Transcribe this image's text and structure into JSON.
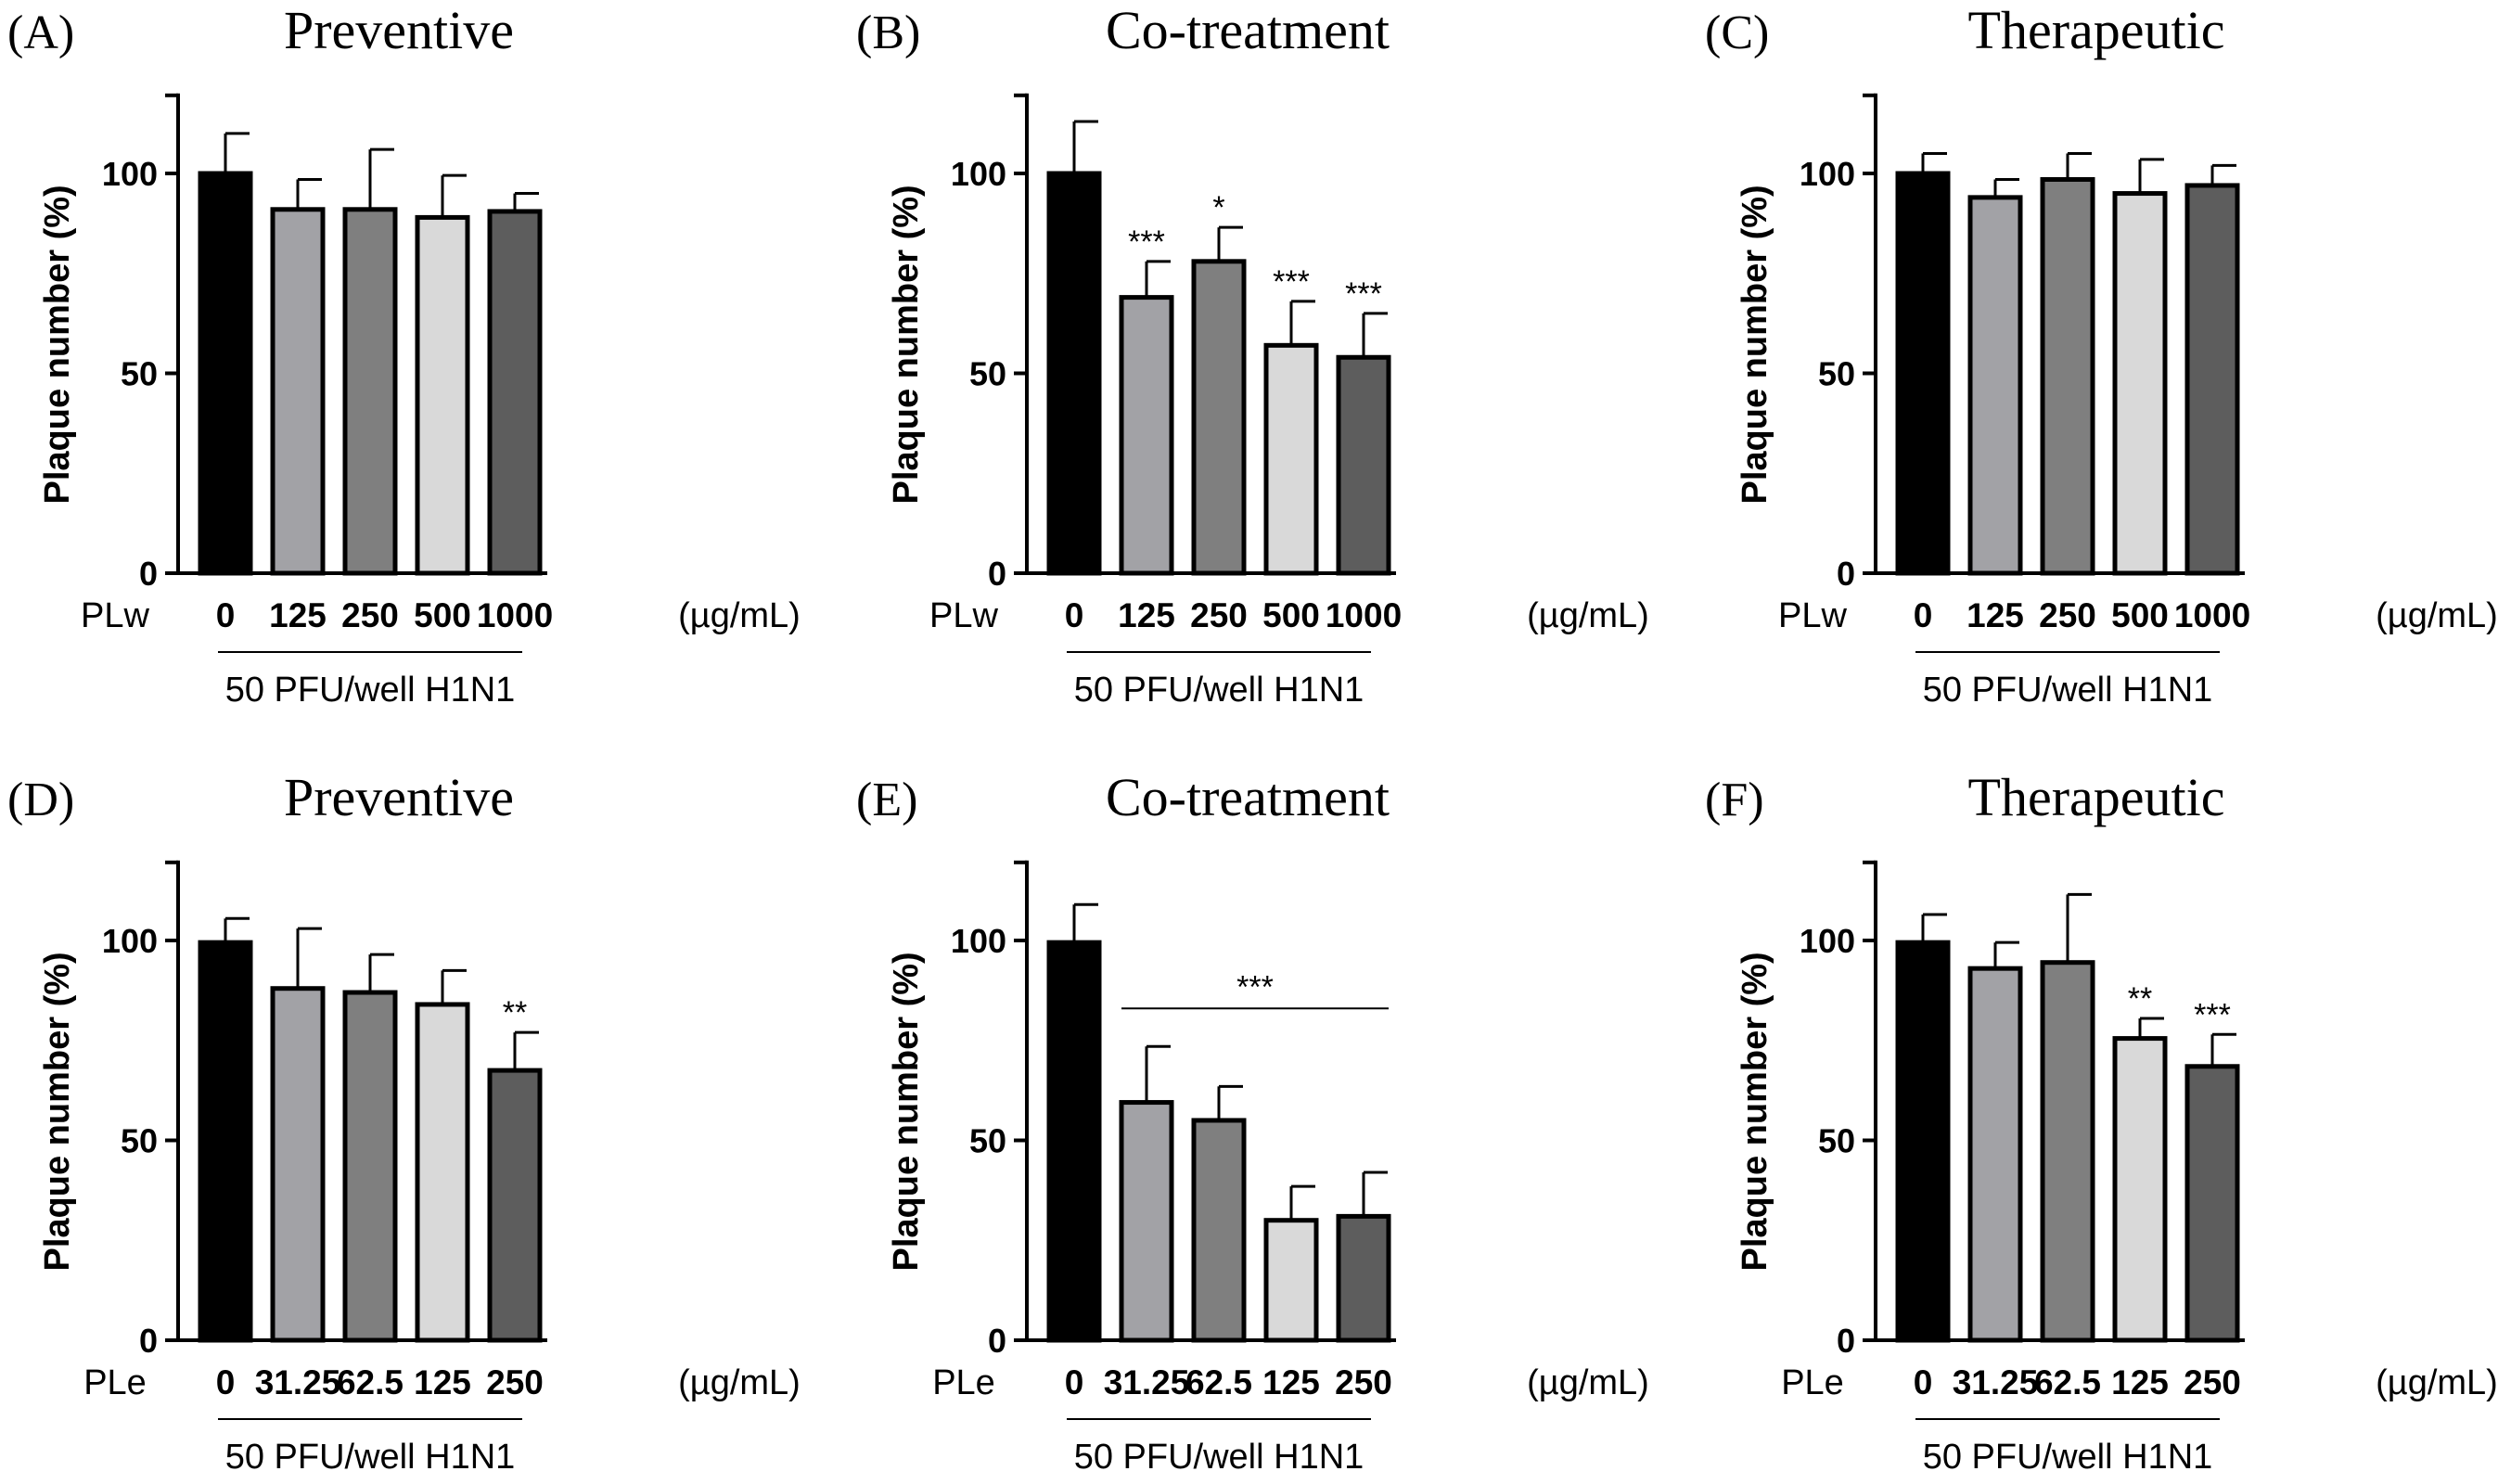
{
  "shared": {
    "ytick_labels": [
      "0",
      "50",
      "100"
    ],
    "ylim": [
      0,
      120
    ],
    "ylabel": "Plaque number (%)",
    "unit": "(µg/mL)",
    "group_label": "50 PFU/well H1N1"
  },
  "chart_data": [
    {
      "type": "bar",
      "panel": "(A)",
      "title": "Preventive",
      "row_label": "PLw",
      "categories": [
        "0",
        "125",
        "250",
        "500",
        "1000"
      ],
      "values": [
        100,
        91,
        91,
        89,
        90.5
      ],
      "errors": [
        10,
        7.5,
        15,
        10.5,
        4.5
      ],
      "sig": [
        "",
        "",
        "",
        "",
        ""
      ],
      "colors": [
        "#000000",
        "#a2a2a6",
        "#7f7f7f",
        "#d9d9d9",
        "#5d5d5d"
      ],
      "ylabel": "Plaque number (%)",
      "xlabel": "50 PFU/well H1N1",
      "ylim": [
        0,
        120
      ]
    },
    {
      "type": "bar",
      "panel": "(B)",
      "title": "Co-treatment",
      "row_label": "PLw",
      "categories": [
        "0",
        "125",
        "250",
        "500",
        "1000"
      ],
      "values": [
        100,
        69,
        78,
        57,
        54
      ],
      "errors": [
        13,
        9,
        8.5,
        11,
        11
      ],
      "sig": [
        "",
        "***",
        "*",
        "***",
        "***"
      ],
      "colors": [
        "#000000",
        "#a2a2a6",
        "#7f7f7f",
        "#d9d9d9",
        "#5d5d5d"
      ],
      "ylabel": "Plaque number (%)",
      "xlabel": "50 PFU/well H1N1",
      "ylim": [
        0,
        120
      ]
    },
    {
      "type": "bar",
      "panel": "(C)",
      "title": "Therapeutic",
      "row_label": "PLw",
      "categories": [
        "0",
        "125",
        "250",
        "500",
        "1000"
      ],
      "values": [
        100,
        94,
        98.5,
        95,
        97
      ],
      "errors": [
        5,
        4.5,
        6.5,
        8.5,
        5
      ],
      "sig": [
        "",
        "",
        "",
        "",
        ""
      ],
      "colors": [
        "#000000",
        "#a2a2a6",
        "#7f7f7f",
        "#d9d9d9",
        "#5d5d5d"
      ],
      "ylabel": "Plaque number (%)",
      "xlabel": "50 PFU/well H1N1",
      "ylim": [
        0,
        120
      ]
    },
    {
      "type": "bar",
      "panel": "(D)",
      "title": "Preventive",
      "row_label": "PLe",
      "categories": [
        "0",
        "31.25",
        "62.5",
        "125",
        "250"
      ],
      "values": [
        99.5,
        88,
        87,
        84,
        67.5
      ],
      "errors": [
        6,
        15,
        9.5,
        8.5,
        9.5
      ],
      "sig": [
        "",
        "",
        "",
        "",
        "**"
      ],
      "colors": [
        "#000000",
        "#a2a2a6",
        "#7f7f7f",
        "#d9d9d9",
        "#5d5d5d"
      ],
      "ylabel": "Plaque number (%)",
      "xlabel": "50 PFU/well H1N1",
      "ylim": [
        0,
        120
      ]
    },
    {
      "type": "bar",
      "panel": "(E)",
      "title": "Co-treatment",
      "row_label": "PLe",
      "categories": [
        "0",
        "31.25",
        "62.5",
        "125",
        "250"
      ],
      "values": [
        99.5,
        59.5,
        55,
        30,
        31
      ],
      "errors": [
        9.5,
        14,
        8.5,
        8.5,
        11
      ],
      "sig": [
        "",
        "",
        "",
        "",
        ""
      ],
      "group_sig": "***",
      "colors": [
        "#000000",
        "#a2a2a6",
        "#7f7f7f",
        "#d9d9d9",
        "#5d5d5d"
      ],
      "ylabel": "Plaque number (%)",
      "xlabel": "50 PFU/well H1N1",
      "ylim": [
        0,
        120
      ]
    },
    {
      "type": "bar",
      "panel": "(F)",
      "title": "Therapeutic",
      "row_label": "PLe",
      "categories": [
        "0",
        "31.25",
        "62.5",
        "125",
        "250"
      ],
      "values": [
        99.5,
        93,
        94.5,
        75.5,
        68.5
      ],
      "errors": [
        7,
        6.5,
        17,
        5,
        8
      ],
      "sig": [
        "",
        "",
        "",
        "**",
        "***"
      ],
      "colors": [
        "#000000",
        "#a2a2a6",
        "#7f7f7f",
        "#d9d9d9",
        "#5d5d5d"
      ],
      "ylabel": "Plaque number (%)",
      "xlabel": "50 PFU/well H1N1",
      "ylim": [
        0,
        120
      ]
    }
  ]
}
